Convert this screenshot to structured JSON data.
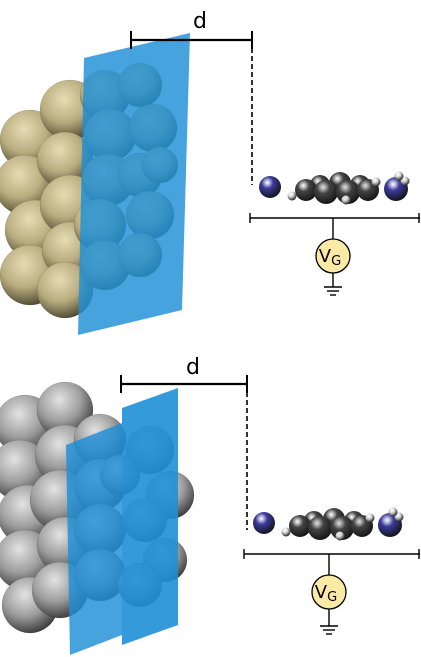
{
  "panels": [
    {
      "id": "top",
      "cluster": {
        "material": "gold",
        "base_color": "#b9ad7f",
        "shadow_color": "#4f4a32",
        "highlight_color": "#e6dcb4"
      },
      "distance_label": "d",
      "gate": {
        "label_main": "V",
        "label_sub": "G",
        "fill_color": "#fbe9a6"
      }
    },
    {
      "id": "bottom",
      "cluster": {
        "material": "silver",
        "base_color": "#9d9d9d",
        "shadow_color": "#3d3d3d",
        "highlight_color": "#e3e3e3"
      },
      "distance_label": "d",
      "gate": {
        "label_main": "V",
        "label_sub": "G",
        "fill_color": "#fbe9a6"
      }
    }
  ],
  "colors": {
    "plane": "#1e8fd6",
    "nitrogen": "#3b3b9c",
    "carbon": "#444444",
    "hydrogen": "#dddddd"
  }
}
